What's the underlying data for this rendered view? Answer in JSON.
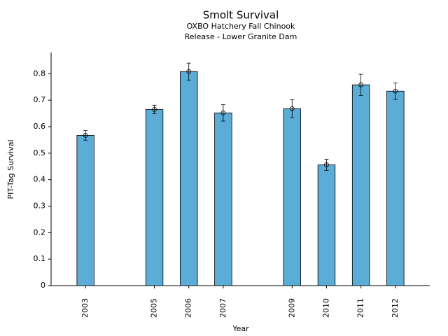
{
  "chart_data": {
    "type": "bar",
    "title": "Smolt Survival",
    "subtitle": [
      "OXBO Hatchery Fall Chinook",
      "Release - Lower Granite Dam"
    ],
    "xlabel": "Year",
    "ylabel": "PIT-Tag Survival",
    "x": [
      2003,
      2005,
      2006,
      2007,
      2009,
      2010,
      2011,
      2012
    ],
    "values": [
      0.567,
      0.665,
      0.808,
      0.652,
      0.668,
      0.456,
      0.758,
      0.734
    ],
    "errors": [
      0.018,
      0.016,
      0.032,
      0.031,
      0.034,
      0.021,
      0.04,
      0.031
    ],
    "color": "#5bacd6",
    "xlim": [
      2002,
      2013
    ],
    "ylim": [
      0,
      0.88
    ],
    "yticks": [
      0,
      0.1,
      0.2,
      0.3,
      0.4,
      0.5,
      0.6,
      0.7,
      0.8
    ]
  }
}
